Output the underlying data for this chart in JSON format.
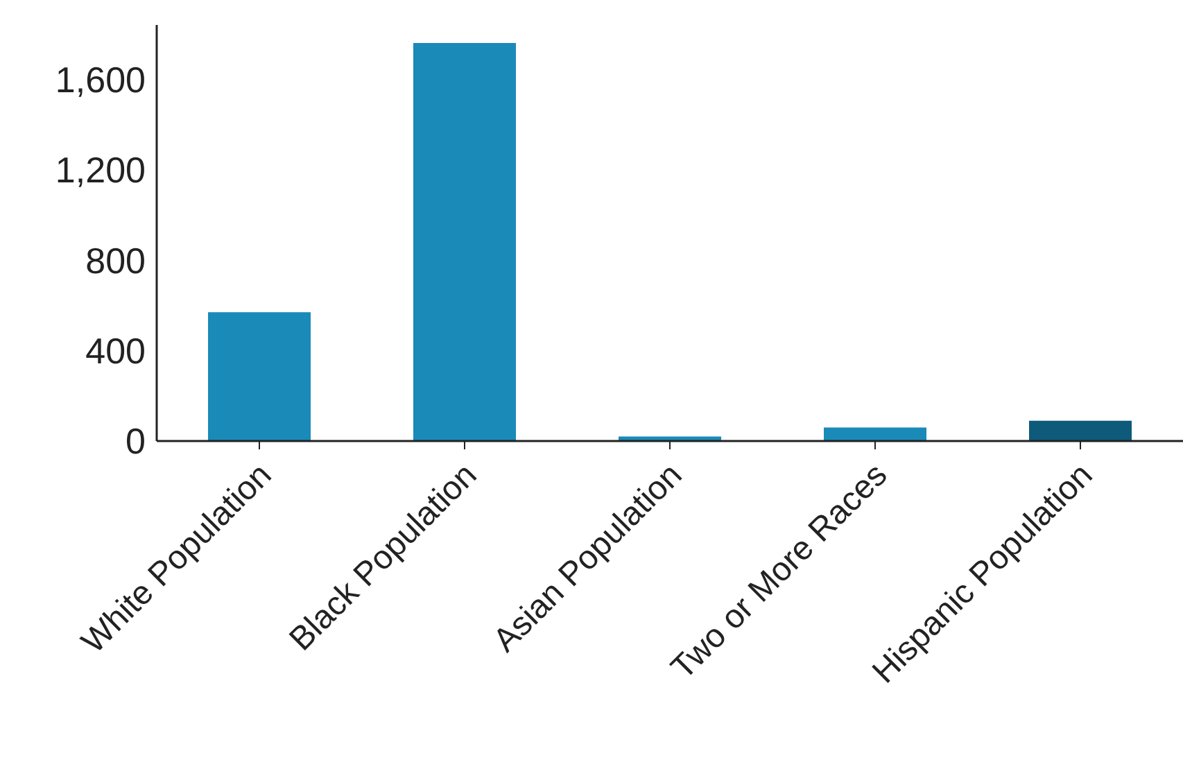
{
  "chart_data": {
    "type": "bar",
    "categories": [
      "White Population",
      "Black Population",
      "Asian Population",
      "Two or More Races",
      "Hispanic Population"
    ],
    "values": [
      570,
      1760,
      20,
      60,
      90
    ],
    "colors": [
      "#1a8ab8",
      "#1a8ab8",
      "#1a8ab8",
      "#1a8ab8",
      "#0e5a7a"
    ],
    "ylim": [
      0,
      1840
    ],
    "yticks": [
      0,
      400,
      800,
      {
        "value": 1200,
        "label": "1,200"
      },
      {
        "value": 1600,
        "label": "1,600"
      }
    ],
    "grid": false
  }
}
